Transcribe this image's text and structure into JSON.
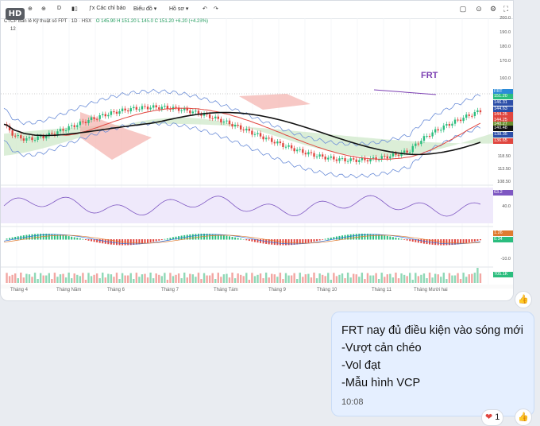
{
  "badge": "HD",
  "toolbar": {
    "interval": "D",
    "indicators": "Các chỉ báo",
    "chart_style": "Biểu đồ",
    "template": "Hồ sơ"
  },
  "legend": {
    "name": "CTCP Bán lẻ Kỹ thuật số FPT · 1D · HSX",
    "ohlc": "O 145.90 H 151.20 L 145.0 C 151.20 +6.20 (+4.28%)",
    "sub": "12"
  },
  "annotation": "FRT",
  "yaxis": [
    "200.0",
    "190.0",
    "180.0",
    "170.0",
    "160.0",
    "118.50",
    "113.50",
    "108.50",
    "40.0",
    "-10.0"
  ],
  "price_tags": [
    {
      "text": "FRT",
      "color": "#2b8bd8"
    },
    {
      "text": "151.20",
      "color": "#2bbd7e"
    },
    {
      "text": "146.31",
      "color": "#2c4ea8"
    },
    {
      "text": "144.63",
      "color": "#2c4ea8"
    },
    {
      "text": "144.25",
      "color": "#e0463f"
    },
    {
      "text": "144.25",
      "color": "#e0463f"
    },
    {
      "text": "140.27",
      "color": "#6a8f2d"
    },
    {
      "text": "140.48",
      "color": "#111111"
    },
    {
      "text": "138.35",
      "color": "#2c4ea8"
    },
    {
      "text": "136.65",
      "color": "#e0463f"
    },
    {
      "text": "63.2",
      "color": "#7e57c2"
    },
    {
      "text": "1.26",
      "color": "#e07b2f"
    },
    {
      "text": "0.34",
      "color": "#2bbd7e"
    },
    {
      "text": "705.1K",
      "color": "#2bbd7e"
    }
  ],
  "xaxis": [
    "Tháng 4",
    "Tháng Năm",
    "Tháng 6",
    "Tháng 7",
    "Tháng Tám",
    "Tháng 9",
    "Tháng 10",
    "Tháng 11",
    "Tháng Mười hai"
  ],
  "message": {
    "lines": [
      "FRT nay đủ điều kiện vào sóng mới",
      "-Vượt cản chéo",
      "-Vol đạt",
      "-Mẫu hình VCP"
    ],
    "time": "10:08"
  },
  "reaction": {
    "icon": "heart-icon",
    "count": "1"
  },
  "colors": {
    "up": "#2bbd7e",
    "down": "#e0463f",
    "bubble": "#e5efff"
  }
}
